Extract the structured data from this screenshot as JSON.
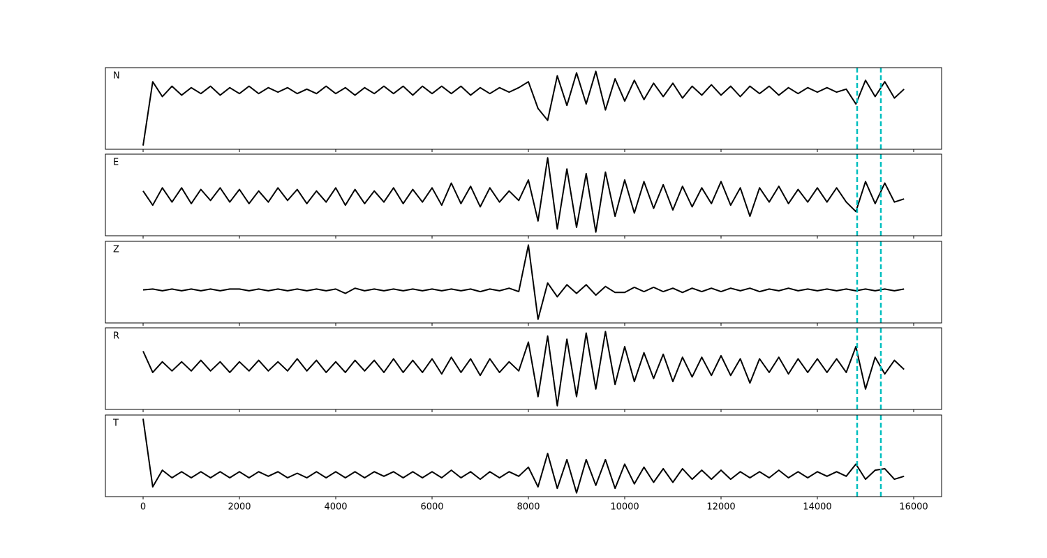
{
  "chart_data": {
    "type": "line",
    "x": [
      0,
      200,
      400,
      600,
      800,
      1000,
      1200,
      1400,
      1600,
      1800,
      2000,
      2200,
      2400,
      2600,
      2800,
      3000,
      3200,
      3400,
      3600,
      3800,
      4000,
      4200,
      4400,
      4600,
      4800,
      5000,
      5200,
      5400,
      5600,
      5800,
      6000,
      6200,
      6400,
      6600,
      6800,
      7000,
      7200,
      7400,
      7600,
      7800,
      8000,
      8200,
      8400,
      8600,
      8800,
      9000,
      9200,
      9400,
      9600,
      9800,
      10000,
      10200,
      10400,
      10600,
      10800,
      11000,
      11200,
      11400,
      11600,
      11800,
      12000,
      12200,
      12400,
      12600,
      12800,
      13000,
      13200,
      13400,
      13600,
      13800,
      14000,
      14200,
      14400,
      14600,
      14800,
      15000,
      15200,
      15400,
      15600,
      15800
    ],
    "xlim": [
      -783,
      16580
    ],
    "xticks": [
      0,
      2000,
      4000,
      6000,
      8000,
      10000,
      12000,
      14000,
      16000
    ],
    "vlines": {
      "x": [
        14826,
        15319
      ],
      "color": "#00bfbf"
    },
    "series": [
      {
        "name": "N",
        "color": "#000000",
        "values": [
          -3.7,
          0.6,
          -0.4,
          0.3,
          -0.3,
          0.2,
          -0.2,
          0.3,
          -0.3,
          0.2,
          -0.2,
          0.3,
          -0.2,
          0.2,
          -0.1,
          0.2,
          -0.2,
          0.1,
          -0.2,
          0.3,
          -0.2,
          0.2,
          -0.3,
          0.2,
          -0.2,
          0.3,
          -0.2,
          0.3,
          -0.3,
          0.3,
          -0.2,
          0.3,
          -0.2,
          0.3,
          -0.3,
          0.2,
          -0.2,
          0.2,
          -0.1,
          0.2,
          0.6,
          -1.2,
          -2.0,
          1.0,
          -1.0,
          1.2,
          -0.9,
          1.3,
          -1.3,
          0.8,
          -0.7,
          0.7,
          -0.6,
          0.5,
          -0.4,
          0.5,
          -0.5,
          0.3,
          -0.3,
          0.4,
          -0.3,
          0.3,
          -0.4,
          0.3,
          -0.2,
          0.3,
          -0.3,
          0.2,
          -0.2,
          0.2,
          -0.1,
          0.2,
          -0.1,
          0.1,
          -0.9,
          0.7,
          -0.4,
          0.6,
          -0.5,
          0.1
        ]
      },
      {
        "name": "E",
        "color": "#000000",
        "values": [
          0.3,
          -0.6,
          0.5,
          -0.4,
          0.5,
          -0.5,
          0.4,
          -0.3,
          0.5,
          -0.4,
          0.4,
          -0.5,
          0.3,
          -0.4,
          0.5,
          -0.3,
          0.4,
          -0.5,
          0.3,
          -0.4,
          0.5,
          -0.6,
          0.4,
          -0.5,
          0.3,
          -0.4,
          0.5,
          -0.5,
          0.4,
          -0.4,
          0.5,
          -0.6,
          0.8,
          -0.5,
          0.6,
          -0.7,
          0.5,
          -0.4,
          0.3,
          -0.3,
          1.0,
          -1.6,
          2.4,
          -2.1,
          1.7,
          -2.0,
          1.4,
          -2.3,
          1.5,
          -1.3,
          1.0,
          -1.1,
          0.9,
          -0.8,
          0.7,
          -0.9,
          0.6,
          -0.7,
          0.5,
          -0.5,
          0.9,
          -0.6,
          0.5,
          -1.3,
          0.5,
          -0.4,
          0.6,
          -0.5,
          0.4,
          -0.4,
          0.5,
          -0.4,
          0.5,
          -0.4,
          -1.0,
          0.9,
          -0.5,
          0.8,
          -0.4,
          -0.2
        ]
      },
      {
        "name": "Z",
        "color": "#000000",
        "values": [
          0,
          0.05,
          -0.05,
          0.05,
          -0.05,
          0.05,
          -0.05,
          0.05,
          -0.05,
          0.05,
          0.05,
          -0.05,
          0.05,
          -0.05,
          0.05,
          -0.05,
          0.05,
          -0.05,
          0.05,
          -0.05,
          0.05,
          -0.2,
          0.1,
          -0.05,
          0.05,
          -0.05,
          0.05,
          -0.05,
          0.05,
          -0.05,
          0.05,
          -0.05,
          0.05,
          -0.05,
          0.05,
          -0.1,
          0.05,
          -0.05,
          0.1,
          -0.1,
          2.6,
          -1.7,
          0.4,
          -0.4,
          0.3,
          -0.2,
          0.3,
          -0.3,
          0.2,
          -0.15,
          -0.15,
          0.15,
          -0.1,
          0.15,
          -0.1,
          0.1,
          -0.15,
          0.1,
          -0.1,
          0.1,
          -0.1,
          0.1,
          -0.05,
          0.1,
          -0.1,
          0.05,
          -0.05,
          0.1,
          -0.05,
          0.05,
          -0.05,
          0.05,
          -0.05,
          0.05,
          -0.05,
          0.05,
          -0.05,
          0.05,
          -0.05,
          0.05
        ]
      },
      {
        "name": "R",
        "color": "#000000",
        "values": [
          1.0,
          -0.4,
          0.3,
          -0.3,
          0.3,
          -0.3,
          0.4,
          -0.3,
          0.3,
          -0.4,
          0.3,
          -0.3,
          0.4,
          -0.3,
          0.3,
          -0.3,
          0.5,
          -0.3,
          0.4,
          -0.4,
          0.3,
          -0.4,
          0.4,
          -0.3,
          0.4,
          -0.4,
          0.5,
          -0.4,
          0.4,
          -0.4,
          0.5,
          -0.5,
          0.6,
          -0.4,
          0.5,
          -0.6,
          0.5,
          -0.4,
          0.3,
          -0.3,
          1.6,
          -2.0,
          2.0,
          -2.6,
          1.8,
          -2.0,
          2.2,
          -1.5,
          2.3,
          -1.2,
          1.3,
          -1.0,
          0.9,
          -0.8,
          0.8,
          -1.0,
          0.6,
          -0.7,
          0.6,
          -0.6,
          0.7,
          -0.6,
          0.5,
          -1.1,
          0.5,
          -0.4,
          0.6,
          -0.5,
          0.5,
          -0.4,
          0.5,
          -0.4,
          0.5,
          -0.4,
          1.3,
          -1.5,
          0.6,
          -0.5,
          0.4,
          -0.2
        ]
      },
      {
        "name": "T",
        "color": "#000000",
        "values": [
          3.7,
          -0.8,
          0.3,
          -0.2,
          0.2,
          -0.2,
          0.2,
          -0.2,
          0.2,
          -0.2,
          0.2,
          -0.2,
          0.2,
          -0.1,
          0.2,
          -0.2,
          0.1,
          -0.2,
          0.2,
          -0.2,
          0.2,
          -0.2,
          0.2,
          -0.2,
          0.2,
          -0.1,
          0.2,
          -0.2,
          0.2,
          -0.2,
          0.2,
          -0.2,
          0.3,
          -0.2,
          0.2,
          -0.3,
          0.2,
          -0.2,
          0.2,
          -0.1,
          0.5,
          -0.8,
          1.4,
          -0.9,
          1.0,
          -1.2,
          1.0,
          -0.7,
          1.0,
          -0.9,
          0.7,
          -0.6,
          0.5,
          -0.5,
          0.4,
          -0.5,
          0.4,
          -0.3,
          0.3,
          -0.3,
          0.3,
          -0.3,
          0.2,
          -0.2,
          0.2,
          -0.2,
          0.3,
          -0.2,
          0.2,
          -0.2,
          0.2,
          -0.1,
          0.2,
          -0.1,
          0.7,
          -0.3,
          0.3,
          0.4,
          -0.3,
          -0.1
        ]
      }
    ]
  }
}
